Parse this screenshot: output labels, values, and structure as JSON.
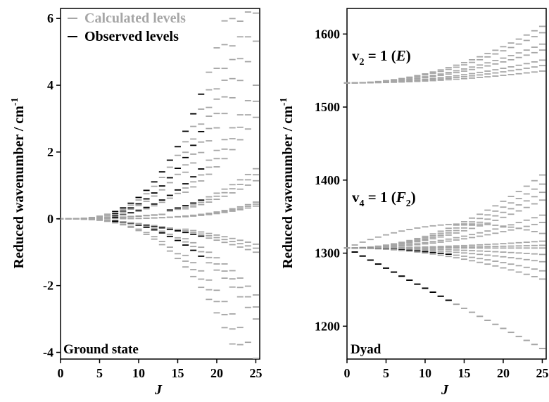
{
  "chart_data": [
    {
      "type": "scatter",
      "panel": "left",
      "xlabel": "J",
      "ylabel": "Reduced wavenumber / cm",
      "ylabel_superscript": "-1",
      "xlim": [
        0,
        25.5
      ],
      "ylim": [
        -4.2,
        6.3
      ],
      "xticks": [
        "0",
        "5",
        "10",
        "15",
        "20",
        "25"
      ],
      "yticks": [
        "-4",
        "-2",
        "0",
        "2",
        "4",
        "6"
      ],
      "panel_label": "Ground state",
      "legend": {
        "placement": "top-left",
        "entries": [
          {
            "name": "Calculated levels",
            "color": "#a6a6a6"
          },
          {
            "name": "Observed levels",
            "color": "#000000"
          }
        ]
      },
      "series": [
        {
          "name": "Calculated levels",
          "color": "#a6a6a6",
          "branches": [
            [
              0.4,
              1.0,
              3
            ],
            [
              0.28,
              1.0,
              3
            ],
            [
              0.16,
              1.0,
              3
            ],
            [
              0.06,
              1.0,
              3
            ],
            [
              0.02,
              1.0,
              4
            ],
            [
              -0.04,
              1.0,
              2
            ],
            [
              -0.12,
              1.0,
              3
            ],
            [
              -0.22,
              1.0,
              3
            ]
          ]
        },
        {
          "name": "Observed levels",
          "color": "#000000",
          "J_min": 7,
          "J_max": 18,
          "branches_from_calculated": [
            0,
            1,
            2,
            3,
            5,
            6
          ]
        }
      ]
    },
    {
      "type": "scatter",
      "panel": "right",
      "xlabel": "J",
      "ylabel": "Reduced wavenumber / cm",
      "ylabel_superscript": "-1",
      "xlim": [
        0,
        25.5
      ],
      "ylim": [
        1155,
        1635
      ],
      "xticks": [
        "0",
        "5",
        "10",
        "15",
        "20",
        "25"
      ],
      "yticks": [
        "1200",
        "1300",
        "1400",
        "1500",
        "1600"
      ],
      "panel_label": "Dyad",
      "band_labels": [
        {
          "text_v": "v",
          "sub": "2",
          "text_eq": " = 1 (",
          "sym": "E",
          "sym_sub": "",
          "text_close": ")"
        },
        {
          "text_v": "v",
          "sub": "4",
          "text_eq": " = 1 (",
          "sym": "F",
          "sym_sub": "2",
          "text_close": ")"
        }
      ],
      "series": [
        {
          "name": "v2 = 1 (E)",
          "color": "#a6a6a6",
          "origin": 1533,
          "branches": [
            [
              0.124
            ],
            [
              0.11
            ],
            [
              0.085
            ],
            [
              0.072
            ],
            [
              0.05
            ],
            [
              0.038
            ],
            [
              0.026
            ]
          ]
        },
        {
          "name": "v4 = 1 (F2)",
          "color": "#a6a6a6",
          "origin": 1307,
          "branches": [
            [
              0.16
            ],
            [
              0.14
            ],
            [
              0.122
            ],
            [
              0.105
            ],
            [
              0.088
            ],
            [
              0.072
            ],
            [
              0.056
            ],
            [
              0.015
            ],
            [
              0.006
            ],
            [
              0.0
            ],
            [
              -0.006
            ],
            [
              -0.014
            ],
            [
              -0.03
            ],
            [
              -0.05
            ],
            [
              -0.068
            ],
            [
              -0.08
            ]
          ]
        },
        {
          "name": "Observed levels",
          "color": "#000000",
          "J_min": 1,
          "J_max": 13
        }
      ]
    }
  ]
}
